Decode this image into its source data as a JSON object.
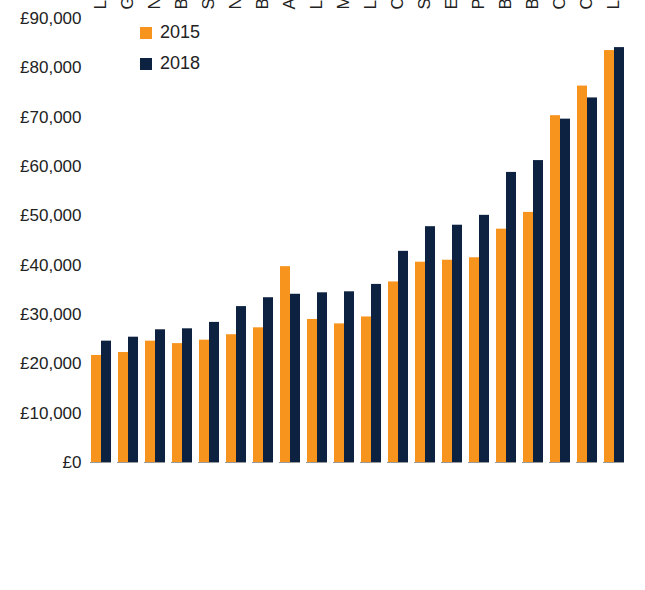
{
  "chart_data": {
    "type": "bar",
    "categories": [
      "Liverpool",
      "Glasgow",
      "Newcastle",
      "Belfast",
      "Sheffield",
      "Nottingham",
      "Birmingham",
      "Aberdeen",
      "Leeds",
      "Manchester",
      "Leicester",
      "Cardiff",
      "Southampton",
      "Edinburgh",
      "Portsmouth",
      "Bristol",
      "Bournemouth",
      "Oxford",
      "Cambridge",
      "London"
    ],
    "series": [
      {
        "name": "2015",
        "color": "#f7941d",
        "values": [
          21700,
          22300,
          24600,
          24100,
          24800,
          25900,
          27300,
          39700,
          29000,
          28100,
          29500,
          36600,
          40600,
          41000,
          41500,
          47300,
          50700,
          70300,
          76300,
          83500
        ]
      },
      {
        "name": "2018",
        "color": "#0d2240",
        "values": [
          24600,
          25400,
          26900,
          27100,
          28400,
          31600,
          33400,
          34100,
          34400,
          34600,
          36100,
          42800,
          47800,
          48100,
          50100,
          58800,
          61200,
          69600,
          73900,
          84100
        ]
      }
    ],
    "ylim": [
      0,
      90000
    ],
    "yticks": [
      {
        "value": 0,
        "label": "£0"
      },
      {
        "value": 10000,
        "label": "£10,000"
      },
      {
        "value": 20000,
        "label": "£20,000"
      },
      {
        "value": 30000,
        "label": "£30,000"
      },
      {
        "value": 40000,
        "label": "£40,000"
      },
      {
        "value": 50000,
        "label": "£50,000"
      },
      {
        "value": 60000,
        "label": "£60,000"
      },
      {
        "value": 70000,
        "label": "£70,000"
      },
      {
        "value": 80000,
        "label": "£80,000"
      },
      {
        "value": 90000,
        "label": "£90,000"
      }
    ],
    "grid": false,
    "legend": "top-left"
  }
}
